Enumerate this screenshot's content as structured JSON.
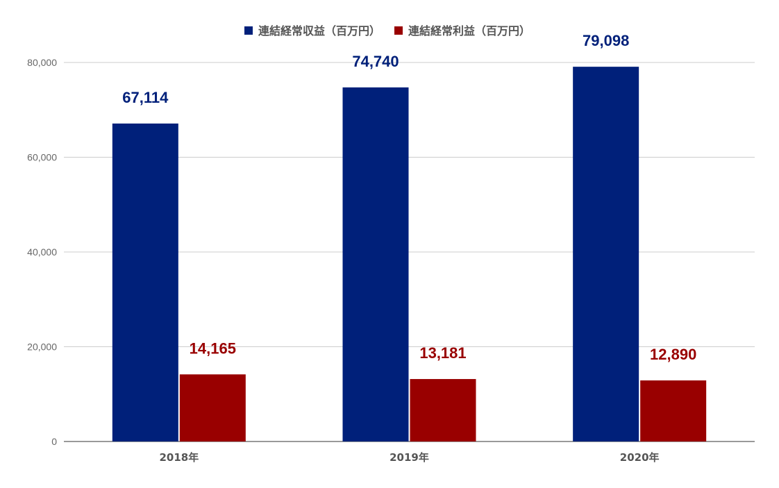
{
  "chart_data": {
    "type": "bar",
    "categories": [
      "2018年",
      "2019年",
      "2020年"
    ],
    "series": [
      {
        "name": "連結経常収益（百万円）",
        "values": [
          67114,
          74740,
          79098
        ],
        "labels": [
          "67,114",
          "74,740",
          "79,098"
        ],
        "color": "#00207a"
      },
      {
        "name": "連結経常利益（百万円）",
        "values": [
          14165,
          13181,
          12890
        ],
        "labels": [
          "14,165",
          "13,181",
          "12,890"
        ],
        "color": "#990000"
      }
    ],
    "y_ticks": [
      {
        "value": 0,
        "label": "0"
      },
      {
        "value": 20000,
        "label": "20,000"
      },
      {
        "value": 40000,
        "label": "40,000"
      },
      {
        "value": 60000,
        "label": "60,000"
      },
      {
        "value": 80000,
        "label": "80,000"
      }
    ],
    "ylim": [
      0,
      80000
    ],
    "grid": true,
    "legend": "top-center",
    "title": "",
    "xlabel": "",
    "ylabel": ""
  }
}
